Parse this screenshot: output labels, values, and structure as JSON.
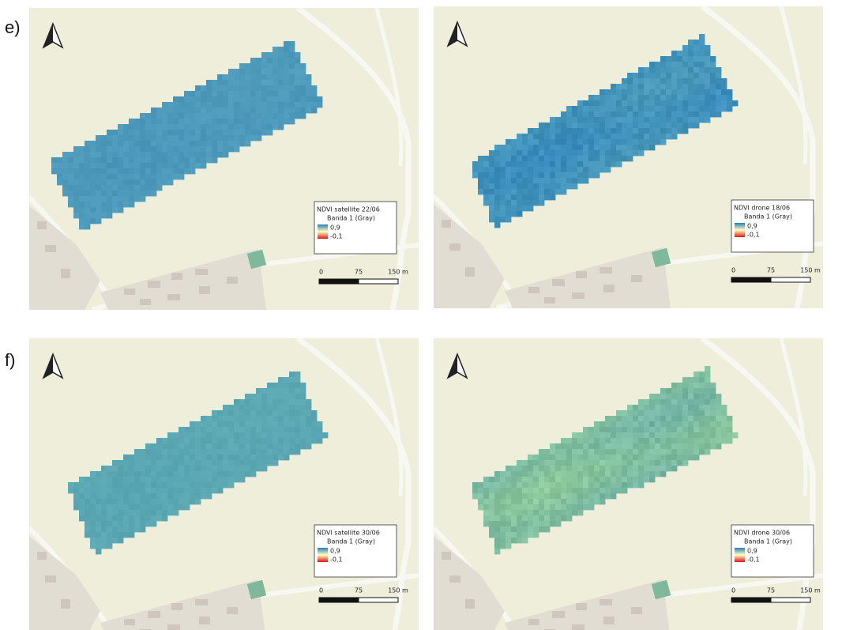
{
  "rows": [
    {
      "label": "e)",
      "panels": [
        {
          "legend": {
            "title": "NDVI satellite 22/06",
            "band": "Banda 1 (Gray)",
            "max": "0,9",
            "min": "-0,1"
          },
          "scale": [
            "0",
            "75",
            "150 m"
          ]
        },
        {
          "legend": {
            "title": "NDVI drone 18/06",
            "band": "Banda 1 (Gray)",
            "max": "0,9",
            "min": "-0,1"
          },
          "scale": [
            "0",
            "75",
            "150 m"
          ]
        }
      ]
    },
    {
      "label": "f)",
      "panels": [
        {
          "legend": {
            "title": "NDVI satellite 30/06",
            "band": "Banda 1 (Gray)",
            "max": "0,9",
            "min": "-0,1"
          },
          "scale": [
            "0",
            "75",
            "150 m"
          ]
        },
        {
          "legend": {
            "title": "NDVI drone 30/06",
            "band": "Banda 1 (Gray)",
            "max": "0,9",
            "min": "-0,1"
          },
          "scale": [
            "0",
            "75",
            "150 m"
          ]
        }
      ]
    }
  ]
}
